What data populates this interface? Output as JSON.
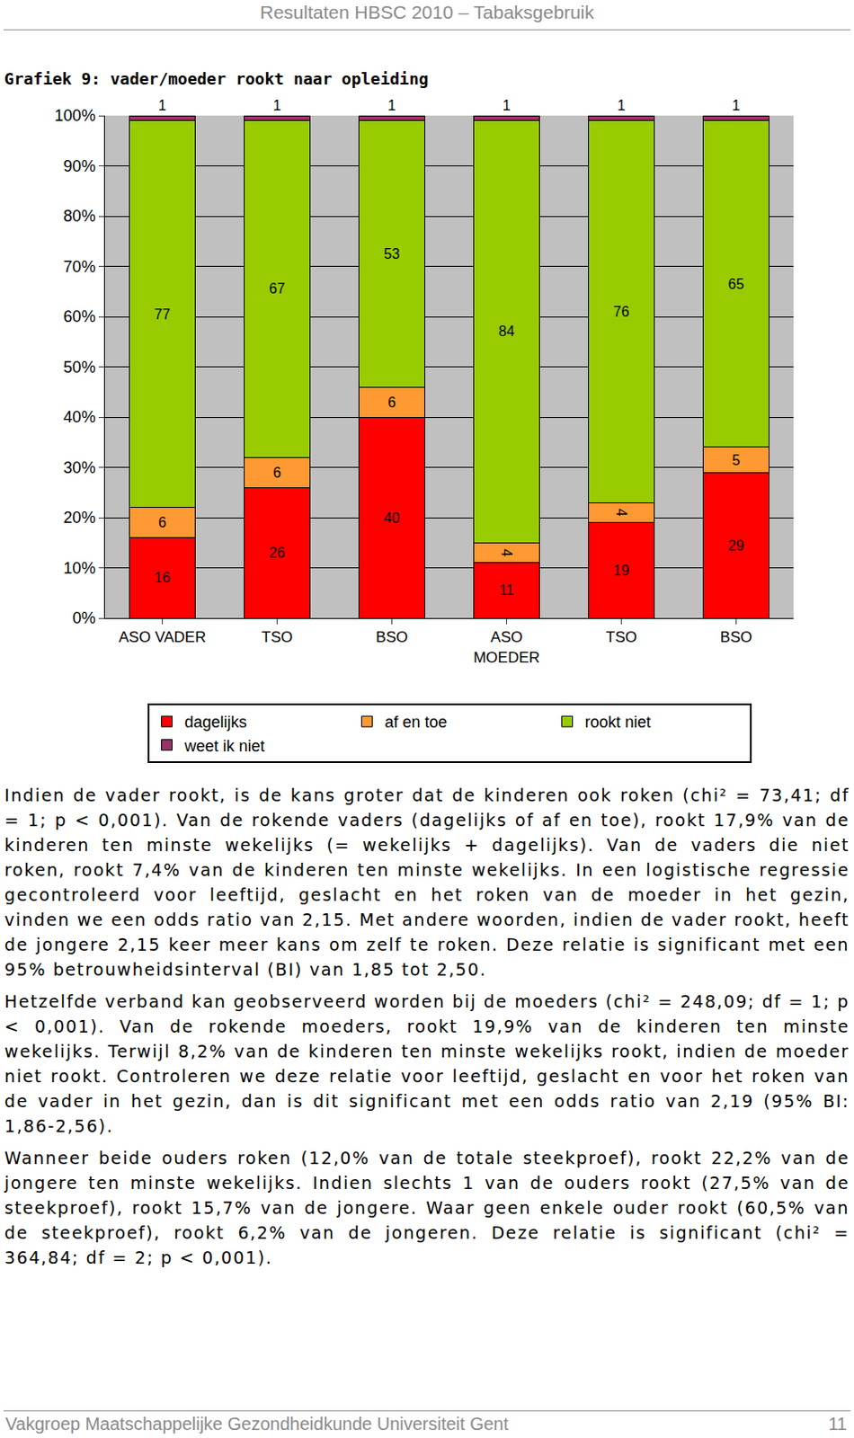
{
  "header": "Resultaten HBSC 2010 – Tabaksgebruik",
  "chart_data": {
    "type": "bar",
    "stacked": true,
    "title": "Grafiek 9: vader/moeder rookt naar opleiding",
    "categories": [
      "ASO VADER",
      "TSO",
      "BSO",
      "ASO\nMOEDER",
      "TSO",
      "BSO"
    ],
    "series": [
      {
        "name": "dagelijks",
        "color": "#ff0000",
        "values": [
          16,
          26,
          40,
          11,
          19,
          29
        ]
      },
      {
        "name": "af en toe",
        "color": "#ff9933",
        "values": [
          6,
          6,
          6,
          4,
          4,
          5
        ]
      },
      {
        "name": "rookt niet",
        "color": "#99cc00",
        "values": [
          77,
          67,
          53,
          84,
          76,
          65
        ]
      },
      {
        "name": "weet ik niet",
        "color": "#993366",
        "values": [
          1,
          1,
          1,
          1,
          1,
          1
        ]
      }
    ],
    "ylim": [
      0,
      100
    ],
    "yticks": [
      {
        "value": 0,
        "label": "0%"
      },
      {
        "value": 10,
        "label": "10%"
      },
      {
        "value": 20,
        "label": "20%"
      },
      {
        "value": 30,
        "label": "30%"
      },
      {
        "value": 40,
        "label": "40%"
      },
      {
        "value": 50,
        "label": "50%"
      },
      {
        "value": 60,
        "label": "60%"
      },
      {
        "value": 70,
        "label": "70%"
      },
      {
        "value": 80,
        "label": "80%"
      },
      {
        "value": 90,
        "label": "90%"
      },
      {
        "value": 100,
        "label": "100%"
      }
    ],
    "grid": true,
    "data_labels": true,
    "legend": "bottom"
  },
  "paragraphs": [
    "Indien de vader rookt, is de kans groter dat de kinderen ook roken (chi² = 73,41; df = 1; p < 0,001). Van de rokende vaders (dagelijks of af en toe), rookt 17,9% van de kinderen ten minste wekelijks (= wekelijks + dagelijks). Van de vaders die niet roken, rookt 7,4% van de kinderen ten minste wekelijks. In een logistische regressie gecontroleerd voor leeftijd, geslacht en het roken van de moeder in het gezin, vinden we een odds ratio van 2,15. Met andere woorden, indien de vader rookt, heeft de jongere 2,15 keer meer kans om zelf te roken. Deze relatie is significant met een 95% betrouwheidsinterval (BI) van 1,85 tot 2,50.",
    "Hetzelfde verband kan geobserveerd worden bij de moeders (chi² = 248,09; df = 1; p < 0,001). Van de rokende moeders, rookt 19,9% van de kinderen ten minste wekelijks. Terwijl 8,2% van de kinderen ten minste wekelijks rookt, indien de moeder niet rookt. Controleren we deze relatie voor leeftijd, geslacht en voor het roken van de vader in het gezin, dan is dit significant met een odds ratio van 2,19 (95% BI: 1,86-2,56).",
    "Wanneer beide ouders roken (12,0% van de totale steekproef), rookt 22,2% van de jongere ten minste wekelijks. Indien slechts 1 van de ouders rookt (27,5% van de steekproef), rookt 15,7% van de jongere. Waar geen enkele ouder rookt (60,5% van de steekproef), rookt 6,2% van de jongeren. Deze relatie is significant (chi² = 364,84; df = 2; p < 0,001)."
  ],
  "footer": {
    "text": "Vakgroep Maatschappelijke Gezondheidkunde Universiteit Gent",
    "page": "11"
  }
}
